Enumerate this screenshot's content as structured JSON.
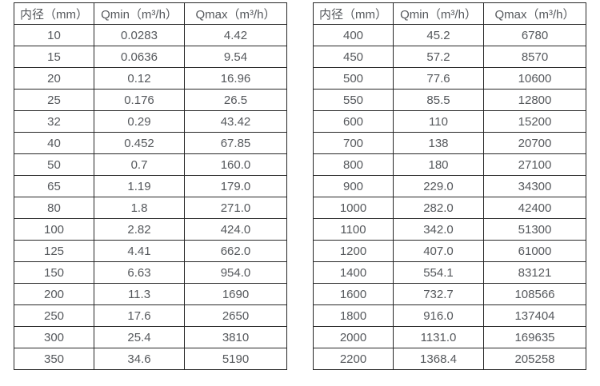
{
  "page": {
    "background_color": "#ffffff",
    "text_color": "#55585c",
    "border_color": "#272727"
  },
  "tables": [
    {
      "name": "flow-rate-table-small-diameters",
      "headers": [
        "内径（mm）",
        "Qmin（m³/h）",
        "Qmax（m³/h）"
      ],
      "rows": [
        [
          "10",
          "0.0283",
          "4.42"
        ],
        [
          "15",
          "0.0636",
          "9.54"
        ],
        [
          "20",
          "0.12",
          "16.96"
        ],
        [
          "25",
          "0.176",
          "26.5"
        ],
        [
          "32",
          "0.29",
          "43.42"
        ],
        [
          "40",
          "0.452",
          "67.85"
        ],
        [
          "50",
          "0.7",
          "160.0"
        ],
        [
          "65",
          "1.19",
          "179.0"
        ],
        [
          "80",
          "1.8",
          "271.0"
        ],
        [
          "100",
          "2.82",
          "424.0"
        ],
        [
          "125",
          "4.41",
          "662.0"
        ],
        [
          "150",
          "6.63",
          "954.0"
        ],
        [
          "200",
          "11.3",
          "1690"
        ],
        [
          "250",
          "17.6",
          "2650"
        ],
        [
          "300",
          "25.4",
          "3810"
        ],
        [
          "350",
          "34.6",
          "5190"
        ]
      ]
    },
    {
      "name": "flow-rate-table-large-diameters",
      "headers": [
        "内径（mm）",
        "Qmin（m³/h）",
        "Qmax（m³/h）"
      ],
      "rows": [
        [
          "400",
          "45.2",
          "6780"
        ],
        [
          "450",
          "57.2",
          "8570"
        ],
        [
          "500",
          "77.6",
          "10600"
        ],
        [
          "550",
          "85.5",
          "12800"
        ],
        [
          "600",
          "110",
          "15200"
        ],
        [
          "700",
          "138",
          "20700"
        ],
        [
          "800",
          "180",
          "27100"
        ],
        [
          "900",
          "229.0",
          "34300"
        ],
        [
          "1000",
          "282.0",
          "42400"
        ],
        [
          "1100",
          "342.0",
          "51300"
        ],
        [
          "1200",
          "407.0",
          "61000"
        ],
        [
          "1400",
          "554.1",
          "83121"
        ],
        [
          "1600",
          "732.7",
          "108566"
        ],
        [
          "1800",
          "916.0",
          "137404"
        ],
        [
          "2000",
          "1131.0",
          "169635"
        ],
        [
          "2200",
          "1368.4",
          "205258"
        ]
      ]
    }
  ]
}
